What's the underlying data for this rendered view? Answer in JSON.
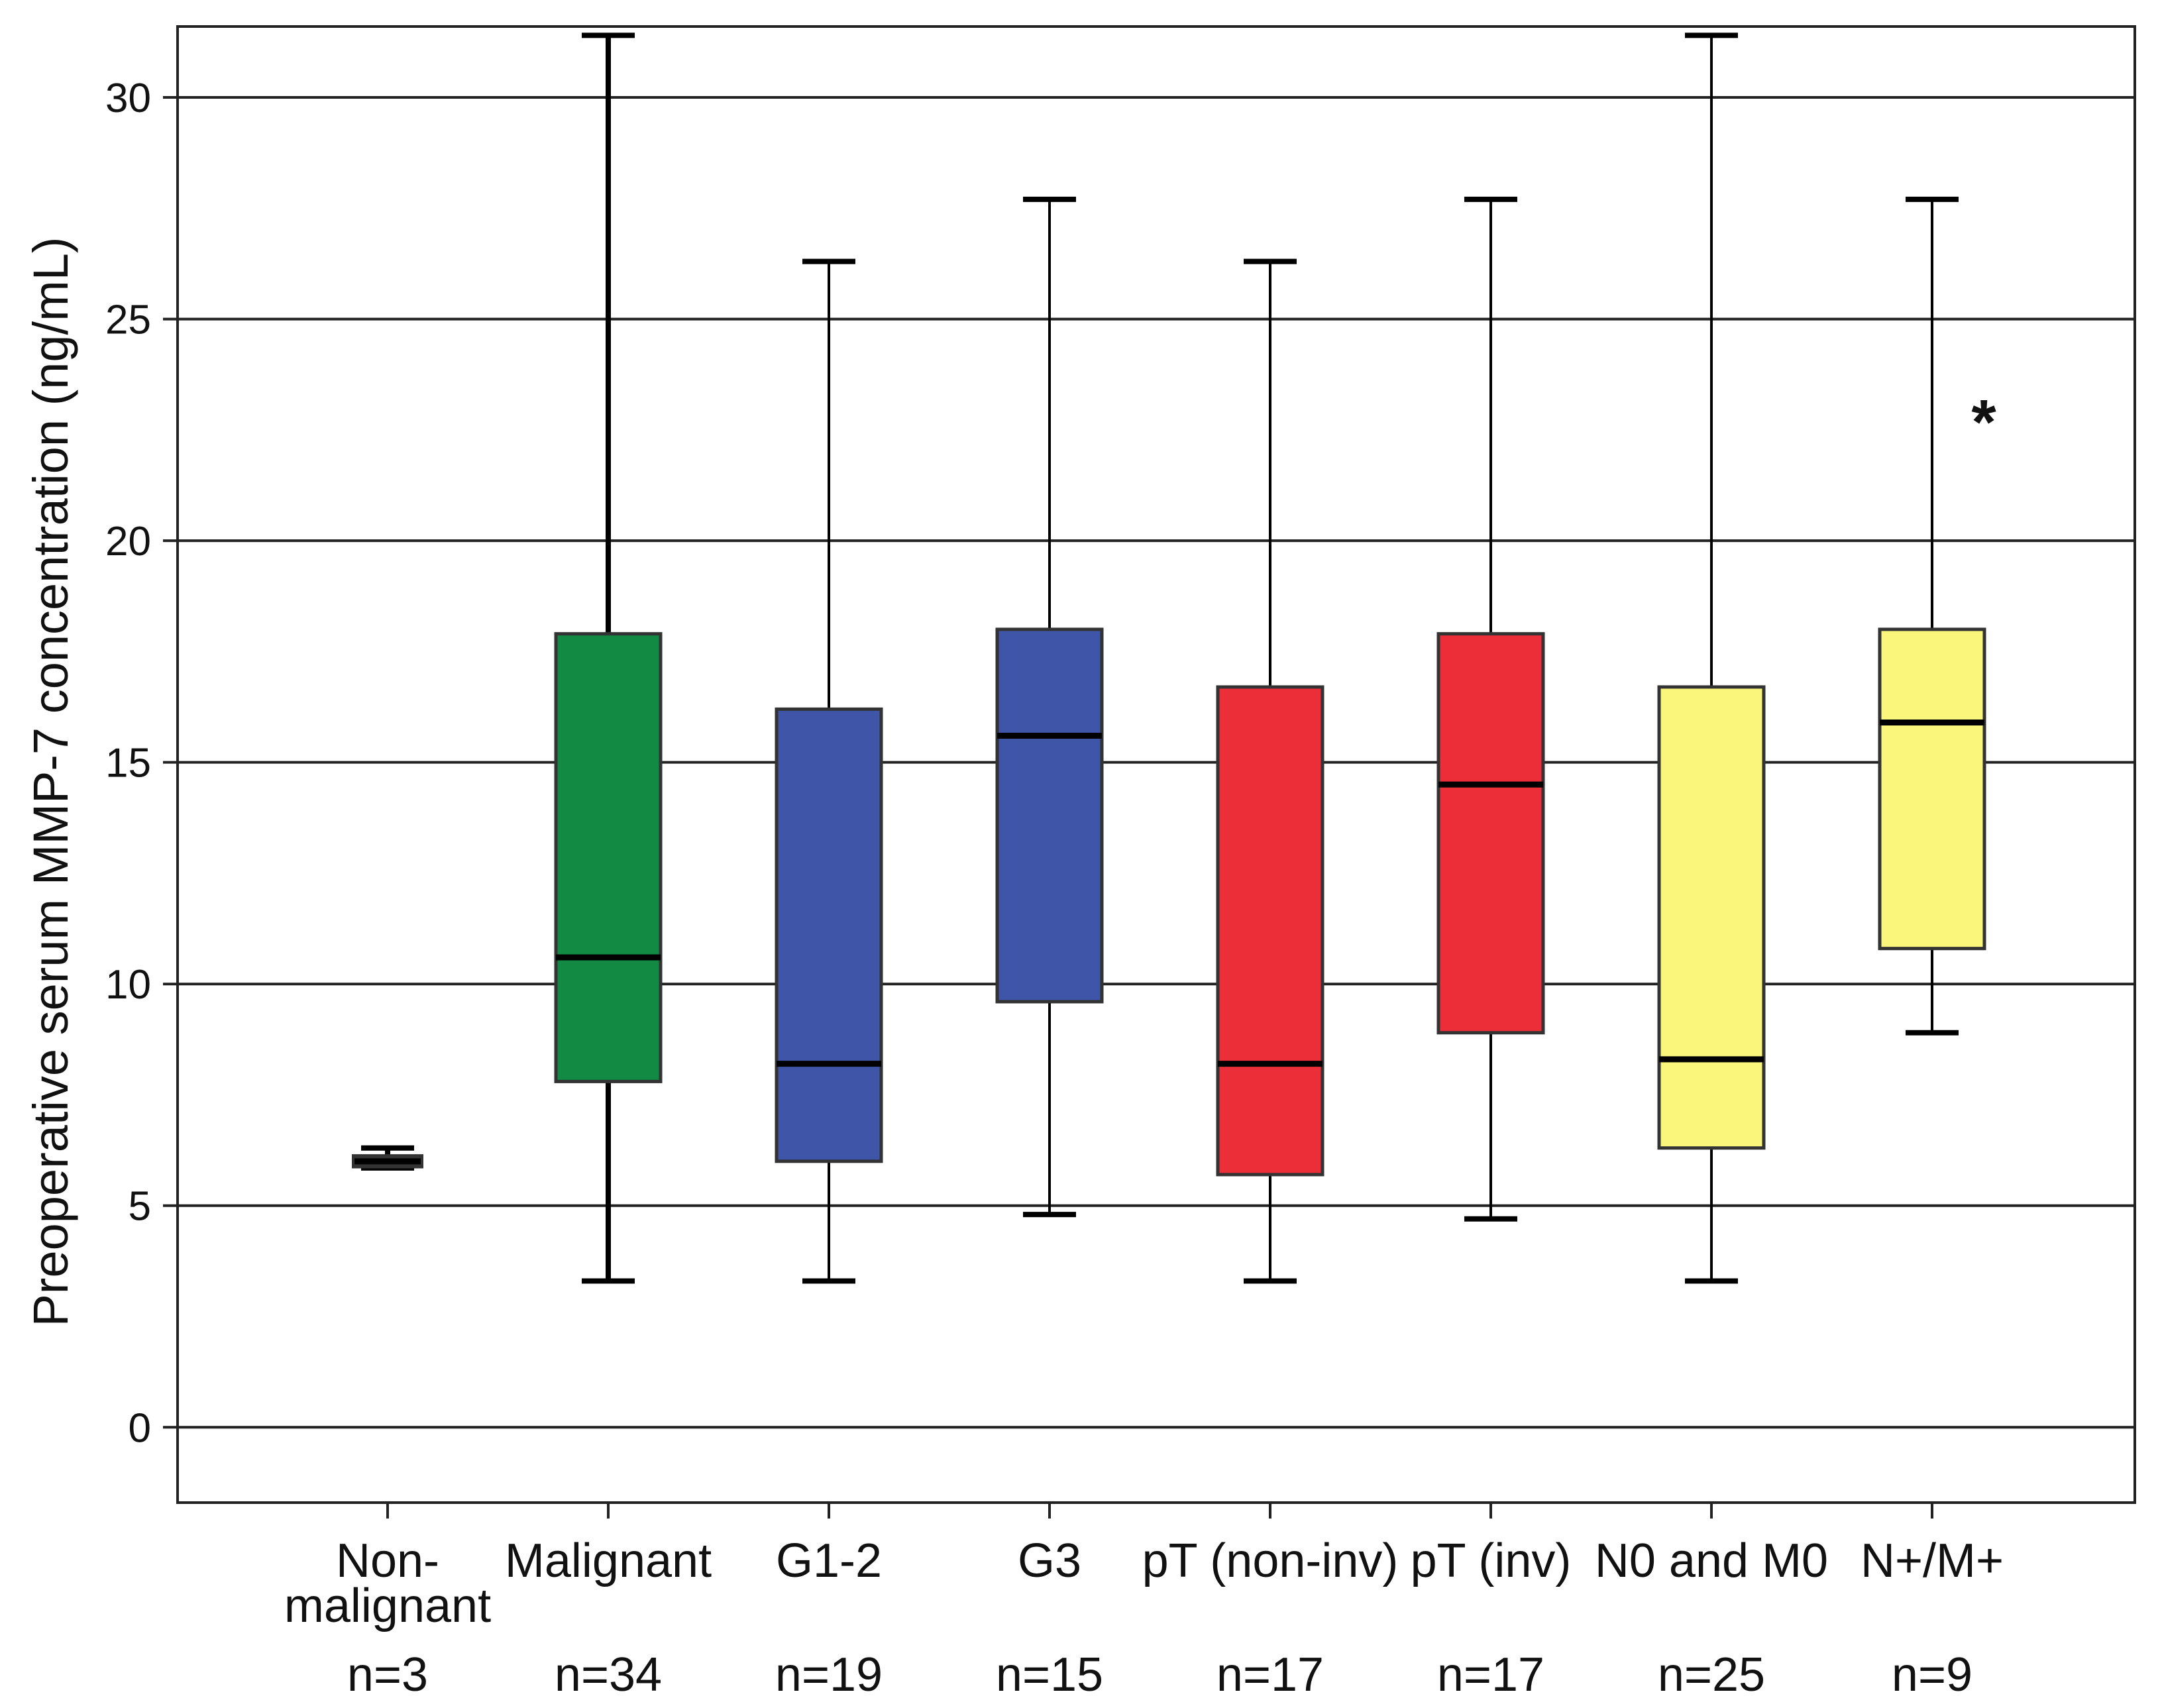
{
  "chart_data": {
    "type": "box",
    "title": "",
    "xlabel": "",
    "ylabel": "Preoperative serum MMP-7 concentration (ng/mL)",
    "ylim": [
      -1.7,
      31.6
    ],
    "yticks": [
      0,
      5,
      10,
      15,
      20,
      25,
      30
    ],
    "ytick_labels": [
      "0",
      "5",
      "10",
      "15",
      "20",
      "25",
      "30"
    ],
    "grid": true,
    "categories": [
      {
        "label_lines": [
          "Non-",
          "malignant"
        ],
        "n": "n=3",
        "color": "#000000",
        "whisker_low": 5.85,
        "q1": 5.9,
        "median": 6.0,
        "q3": 6.1,
        "whisker_high": 6.3,
        "outliers": []
      },
      {
        "label_lines": [
          "Malignant"
        ],
        "n": "n=34",
        "color": "#138a43",
        "whisker_low": 3.3,
        "q1": 7.8,
        "median": 10.6,
        "q3": 17.9,
        "whisker_high": 31.4,
        "outliers": []
      },
      {
        "label_lines": [
          "G1-2"
        ],
        "n": "n=19",
        "color": "#3f56a8",
        "whisker_low": 3.3,
        "q1": 6.0,
        "median": 8.2,
        "q3": 16.2,
        "whisker_high": 26.3,
        "outliers": []
      },
      {
        "label_lines": [
          "G3"
        ],
        "n": "n=15",
        "color": "#3f56a8",
        "whisker_low": 4.8,
        "q1": 9.6,
        "median": 15.6,
        "q3": 18.0,
        "whisker_high": 27.7,
        "outliers": []
      },
      {
        "label_lines": [
          "pT (non-inv)"
        ],
        "n": "n=17",
        "color": "#ec2e38",
        "whisker_low": 3.3,
        "q1": 5.7,
        "median": 8.2,
        "q3": 16.7,
        "whisker_high": 26.3,
        "outliers": []
      },
      {
        "label_lines": [
          "pT (inv)"
        ],
        "n": "n=17",
        "color": "#ec2e38",
        "whisker_low": 4.7,
        "q1": 8.9,
        "median": 14.5,
        "q3": 17.9,
        "whisker_high": 27.7,
        "outliers": []
      },
      {
        "label_lines": [
          "N0 and M0"
        ],
        "n": "n=25",
        "color": "#faf67c",
        "whisker_low": 3.3,
        "q1": 6.3,
        "median": 8.3,
        "q3": 16.7,
        "whisker_high": 31.4,
        "outliers": []
      },
      {
        "label_lines": [
          "N+/M+"
        ],
        "n": "n=9",
        "color": "#faf67c",
        "whisker_low": 8.9,
        "q1": 10.8,
        "median": 15.9,
        "q3": 18.0,
        "whisker_high": 27.7,
        "outliers": [
          22.9
        ]
      }
    ],
    "outlier_symbol": "*"
  }
}
